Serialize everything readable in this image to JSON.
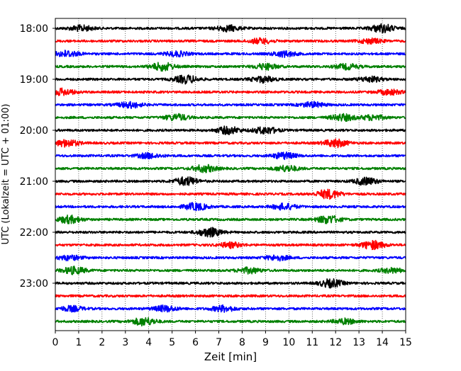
{
  "chart_data": {
    "type": "line",
    "subtype": "helicorder",
    "title": "",
    "xlabel": "Zeit  [min]",
    "ylabel": "UTC (Lokalzeit = UTC + 01:00)",
    "xlim": [
      0,
      15
    ],
    "x_ticks": [
      0,
      1,
      2,
      3,
      4,
      5,
      6,
      7,
      8,
      9,
      10,
      11,
      12,
      13,
      14,
      15
    ],
    "x_tick_labels": [
      "0",
      "1",
      "2",
      "3",
      "4",
      "5",
      "6",
      "7",
      "8",
      "9",
      "10",
      "11",
      "12",
      "13",
      "14",
      "15"
    ],
    "grid": "vertical dotted lines at each minute",
    "y_tick_labels": [
      "18:00",
      "19:00",
      "20:00",
      "21:00",
      "22:00",
      "23:00"
    ],
    "trace_colors": [
      "#000000",
      "#ff0000",
      "#0000ff",
      "#008000"
    ],
    "rows": [
      {
        "start": "18:00",
        "color": "#000000",
        "bursts": [
          [
            1.1,
            1.4
          ],
          [
            7.4,
            1.5
          ],
          [
            14.0,
            2.1
          ]
        ]
      },
      {
        "start": "18:15",
        "color": "#ff0000",
        "bursts": [
          [
            8.8,
            1.3
          ],
          [
            13.5,
            1.2
          ]
        ]
      },
      {
        "start": "18:30",
        "color": "#0000ff",
        "bursts": [
          [
            0.5,
            1.6
          ],
          [
            5.2,
            1.2
          ],
          [
            9.8,
            1.4
          ]
        ]
      },
      {
        "start": "18:45",
        "color": "#008000",
        "bursts": [
          [
            4.6,
            2.0
          ],
          [
            9.0,
            1.5
          ],
          [
            12.5,
            1.3
          ]
        ]
      },
      {
        "start": "19:00",
        "color": "#000000",
        "bursts": [
          [
            5.6,
            2.0
          ],
          [
            8.9,
            1.5
          ],
          [
            13.5,
            1.3
          ]
        ]
      },
      {
        "start": "19:15",
        "color": "#ff0000",
        "bursts": [
          [
            0.3,
            1.6
          ],
          [
            14.3,
            1.3
          ]
        ]
      },
      {
        "start": "19:30",
        "color": "#0000ff",
        "bursts": [
          [
            3.2,
            1.5
          ],
          [
            11.0,
            1.3
          ]
        ]
      },
      {
        "start": "19:45",
        "color": "#008000",
        "bursts": [
          [
            5.2,
            1.6
          ],
          [
            12.3,
            1.7
          ],
          [
            13.6,
            1.3
          ]
        ]
      },
      {
        "start": "20:00",
        "color": "#000000",
        "bursts": [
          [
            7.4,
            1.9
          ],
          [
            9.0,
            1.8
          ]
        ]
      },
      {
        "start": "20:15",
        "color": "#ff0000",
        "bursts": [
          [
            0.5,
            1.8
          ],
          [
            12.0,
            2.0
          ]
        ]
      },
      {
        "start": "20:30",
        "color": "#0000ff",
        "bursts": [
          [
            4.0,
            1.3
          ],
          [
            9.8,
            1.6
          ]
        ]
      },
      {
        "start": "20:45",
        "color": "#008000",
        "bursts": [
          [
            6.4,
            1.8
          ],
          [
            9.9,
            1.5
          ]
        ]
      },
      {
        "start": "21:00",
        "color": "#000000",
        "bursts": [
          [
            5.6,
            2.1
          ],
          [
            13.3,
            1.8
          ]
        ]
      },
      {
        "start": "21:15",
        "color": "#ff0000",
        "bursts": [
          [
            11.7,
            2.3
          ]
        ]
      },
      {
        "start": "21:30",
        "color": "#0000ff",
        "bursts": [
          [
            6.0,
            1.8
          ],
          [
            9.8,
            1.5
          ]
        ]
      },
      {
        "start": "21:45",
        "color": "#008000",
        "bursts": [
          [
            0.6,
            1.9
          ],
          [
            11.7,
            2.0
          ]
        ]
      },
      {
        "start": "22:00",
        "color": "#000000",
        "bursts": [
          [
            6.6,
            2.2
          ]
        ]
      },
      {
        "start": "22:15",
        "color": "#ff0000",
        "bursts": [
          [
            7.5,
            1.3
          ],
          [
            13.6,
            2.1
          ]
        ]
      },
      {
        "start": "22:30",
        "color": "#0000ff",
        "bursts": [
          [
            0.6,
            1.2
          ],
          [
            9.5,
            1.3
          ]
        ]
      },
      {
        "start": "22:45",
        "color": "#008000",
        "bursts": [
          [
            0.8,
            1.8
          ],
          [
            8.3,
            1.4
          ],
          [
            14.4,
            1.2
          ]
        ]
      },
      {
        "start": "23:00",
        "color": "#000000",
        "bursts": [
          [
            11.8,
            2.0
          ]
        ]
      },
      {
        "start": "23:15",
        "color": "#ff0000",
        "bursts": []
      },
      {
        "start": "23:30",
        "color": "#0000ff",
        "bursts": [
          [
            0.7,
            1.3
          ],
          [
            4.7,
            1.5
          ],
          [
            7.2,
            1.5
          ]
        ]
      },
      {
        "start": "23:45",
        "color": "#008000",
        "bursts": [
          [
            3.8,
            2.0
          ],
          [
            12.4,
            1.3
          ]
        ]
      }
    ]
  }
}
